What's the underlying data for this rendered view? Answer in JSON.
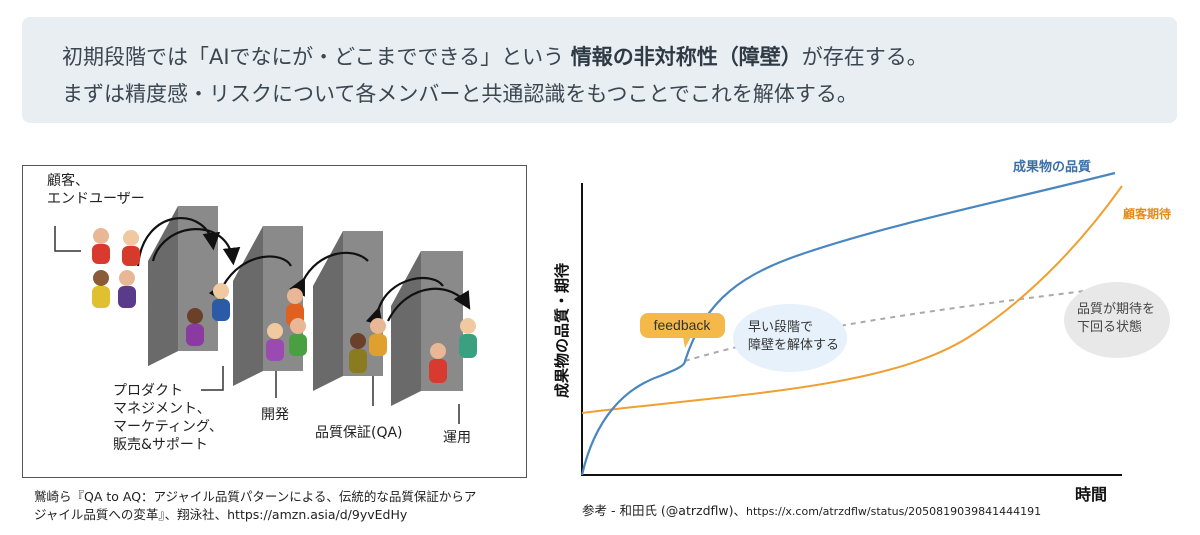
{
  "banner": {
    "line1_pre": "初期段階では「AIでなにが・どこまでできる」という",
    "line1_bold": "情報の非対称性（障壁）",
    "line1_post": "が存在する。",
    "line2": "まずは精度感・リスクについて各メンバーと共通認識をもつことでこれを解体する。"
  },
  "barrier_figure": {
    "label_customer_line1": "顧客、",
    "label_customer_line2": "エンドユーザー",
    "label_pm_line1": "プロダクト",
    "label_pm_line2": "マネジメント、",
    "label_pm_line3": "マーケティング、",
    "label_pm_line4": "販売&サポート",
    "label_dev": "開発",
    "label_qa": "品質保証(QA)",
    "label_ops": "運用",
    "colors": {
      "wall": "#808080",
      "wall_side": "#5a5a5a",
      "arrow": "#111111"
    }
  },
  "citation_left": {
    "line1": "鷲崎ら『QA to AQ：アジャイル品質パターンによる、伝統的な品質保証からア",
    "line2": "ジャイル品質への変革』、翔泳社、https://amzn.asia/d/9yvEdHy"
  },
  "citation_right": {
    "prefix": "参考 - 和田氏 (@atrzdflw)、",
    "url": "https://x.com/atrzdflw/status/2050819039841444191"
  },
  "chart_data": {
    "type": "line",
    "ylabel": "成果物の品質・期待",
    "xlabel": "時間",
    "series": [
      {
        "name": "成果物の品質",
        "color": "#4a86c0"
      },
      {
        "name": "顧客期待",
        "color": "#f0a030"
      }
    ],
    "annotations": {
      "feedback": "feedback",
      "early_line1": "早い段階で",
      "early_line2": "障壁を解体する",
      "below_line1": "品質が期待を",
      "below_line2": "下回る状態"
    },
    "colors": {
      "feedback_bg": "#f5b94a",
      "early_bg": "#e6f1fb",
      "below_bg": "#e8e8e8",
      "dashed": "#aaaaaa",
      "axis": "#111111"
    }
  }
}
